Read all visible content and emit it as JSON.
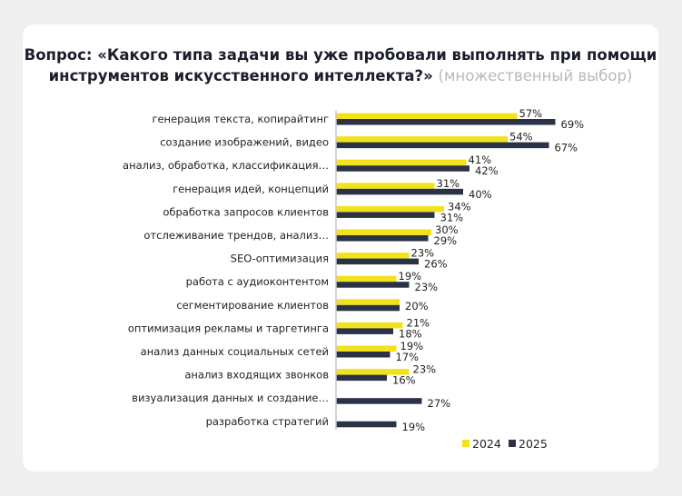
{
  "chart_data": {
    "type": "bar",
    "orientation": "horizontal",
    "title": "Вопрос: «Какого типа задачи вы уже пробовали выполнять при помощи инструментов искусственного интеллекта?»",
    "subtitle": "(множественный выбор)",
    "categories": [
      "генерация текста, копирайтинг",
      "создание изображений, видео",
      "анализ, обработка, классификация…",
      "генерация идей, концепций",
      "обработка запросов клиентов",
      "отслеживание трендов, анализ…",
      "SEO-оптимизация",
      "работа с аудиоконтентом",
      "сегментирование клиентов",
      "оптимизация рекламы и таргетинга",
      "анализ данных социальных сетей",
      "анализ входящих звонков",
      "визуализация данных и создание…",
      "разработка стратегий"
    ],
    "series": [
      {
        "name": "2024",
        "color": "#f2e21a",
        "values": [
          57,
          54,
          41,
          31,
          34,
          30,
          23,
          19,
          20,
          21,
          19,
          23,
          null,
          null
        ]
      },
      {
        "name": "2025",
        "color": "#2b3245",
        "values": [
          69,
          67,
          42,
          40,
          31,
          29,
          26,
          23,
          20,
          18,
          17,
          16,
          27,
          19
        ]
      }
    ],
    "value_suffix": "%",
    "legend": "bottom-right",
    "grid": false,
    "xlim": [
      0,
      70
    ]
  }
}
